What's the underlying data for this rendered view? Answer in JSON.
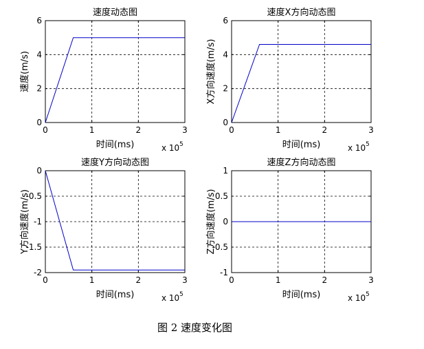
{
  "caption": "图 2  速度变化图",
  "chart_data": [
    {
      "type": "line",
      "title": "速度动态图",
      "xlabel": "时间(ms)",
      "ylabel": "速度(m/s)",
      "x_multiplier": "x 10",
      "x_multiplier_exp": "5",
      "xlim": [
        0,
        3
      ],
      "ylim": [
        0,
        6
      ],
      "xticks": [
        0,
        1,
        2,
        3
      ],
      "yticks": [
        0,
        2,
        4,
        6
      ],
      "xtick_labels": [
        "0",
        "1",
        "2",
        "3"
      ],
      "ytick_labels": [
        "0",
        "2",
        "4",
        "6"
      ],
      "grid": true,
      "series": [
        {
          "color": "#0000c8",
          "x": [
            0,
            0.6,
            3
          ],
          "y": [
            0,
            5,
            5
          ]
        }
      ]
    },
    {
      "type": "line",
      "title": "速度X方向动态图",
      "xlabel": "时间(ms)",
      "ylabel": "X方向速度(m/s)",
      "x_multiplier": "x 10",
      "x_multiplier_exp": "5",
      "xlim": [
        0,
        3
      ],
      "ylim": [
        0,
        6
      ],
      "xticks": [
        0,
        1,
        2,
        3
      ],
      "yticks": [
        0,
        2,
        4,
        6
      ],
      "xtick_labels": [
        "0",
        "1",
        "2",
        "3"
      ],
      "ytick_labels": [
        "0",
        "2",
        "4",
        "6"
      ],
      "grid": true,
      "series": [
        {
          "color": "#0000c8",
          "x": [
            0,
            0.6,
            3
          ],
          "y": [
            0,
            4.6,
            4.6
          ]
        }
      ]
    },
    {
      "type": "line",
      "title": "速度Y方向动态图",
      "xlabel": "时间(ms)",
      "ylabel": "Y方向速度(m/s)",
      "x_multiplier": "x 10",
      "x_multiplier_exp": "5",
      "xlim": [
        0,
        3
      ],
      "ylim": [
        -2,
        0
      ],
      "xticks": [
        0,
        1,
        2,
        3
      ],
      "yticks": [
        0,
        -0.5,
        -1,
        -1.5,
        -2
      ],
      "xtick_labels": [
        "0",
        "1",
        "2",
        "3"
      ],
      "ytick_labels": [
        "0",
        "-0.5",
        "-1",
        "-1.5",
        "-2"
      ],
      "grid": true,
      "series": [
        {
          "color": "#0000c8",
          "x": [
            0,
            0.6,
            3
          ],
          "y": [
            0,
            -1.95,
            -1.95
          ]
        }
      ]
    },
    {
      "type": "line",
      "title": "速度Z方向动态图",
      "xlabel": "时间(ms)",
      "ylabel": "Z方向速度(m/s)",
      "x_multiplier": "x 10",
      "x_multiplier_exp": "5",
      "xlim": [
        0,
        3
      ],
      "ylim": [
        -1,
        1
      ],
      "xticks": [
        0,
        1,
        2,
        3
      ],
      "yticks": [
        1,
        0.5,
        0,
        -0.5,
        -1
      ],
      "xtick_labels": [
        "0",
        "1",
        "2",
        "3"
      ],
      "ytick_labels": [
        "1",
        "0.5",
        "0",
        "-0.5",
        "-1"
      ],
      "grid": true,
      "series": [
        {
          "color": "#0000c8",
          "x": [
            0,
            3
          ],
          "y": [
            0,
            0
          ]
        }
      ]
    }
  ]
}
